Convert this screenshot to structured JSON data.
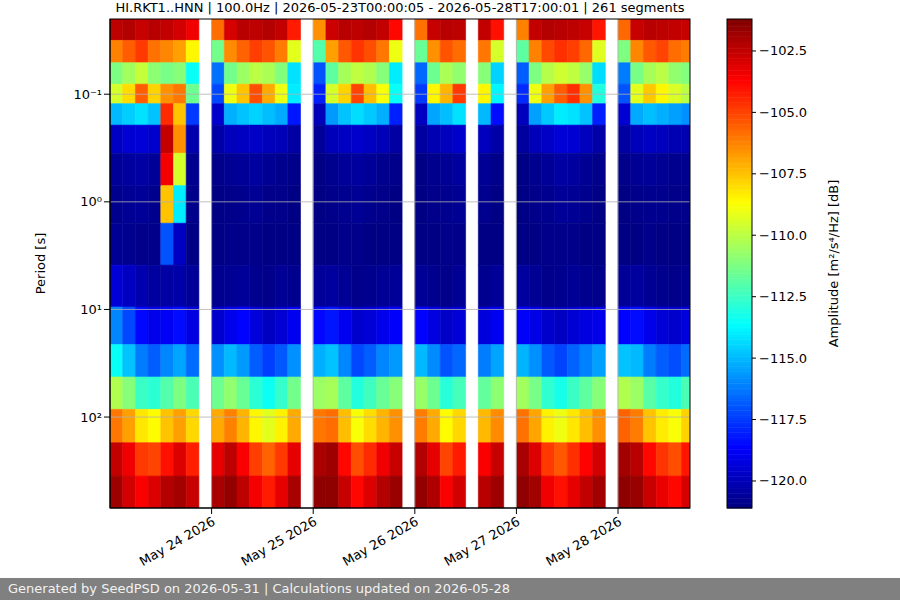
{
  "chart_data": {
    "type": "heatmap",
    "title": "HI.RKT1..HNN | 100.0Hz | 2026-05-23T00:00:05 - 2026-05-28T17:00:01 | 261 segments",
    "ylabel": "Period [s]",
    "footer": "Generated by SeedPSD on 2026-05-31 | Calculations updated on 2026-05-28",
    "log": "y",
    "grid": true,
    "color": "jet",
    "xlim": [
      "2026-05-23T00:00:05",
      "2026-05-28T17:00:01"
    ],
    "xticks": [
      {
        "value": "2026-05-24",
        "label": "May 24 2026"
      },
      {
        "value": "2026-05-25",
        "label": "May 25 2026"
      },
      {
        "value": "2026-05-26",
        "label": "May 26 2026"
      },
      {
        "value": "2026-05-27",
        "label": "May 27 2026"
      },
      {
        "value": "2026-05-28",
        "label": "May 28 2026"
      }
    ],
    "ylim": [
      0.02,
      700
    ],
    "yticks": [
      {
        "value": 0.1,
        "label": "10⁻¹"
      },
      {
        "value": 1,
        "label": "10⁰"
      },
      {
        "value": 10,
        "label": "10¹"
      },
      {
        "value": 100,
        "label": "10²"
      }
    ],
    "x": [
      "2026-05-23T01:30",
      "2026-05-23T04:30",
      "2026-05-23T07:30",
      "2026-05-23T10:30",
      "2026-05-23T13:30",
      "2026-05-23T16:30",
      "2026-05-23T19:30",
      "2026-05-23T22:30",
      "2026-05-24T01:30",
      "2026-05-24T04:30",
      "2026-05-24T07:30",
      "2026-05-24T10:30",
      "2026-05-24T13:30",
      "2026-05-24T16:30",
      "2026-05-24T19:30",
      "2026-05-24T22:30",
      "2026-05-25T01:30",
      "2026-05-25T04:30",
      "2026-05-25T07:30",
      "2026-05-25T10:30",
      "2026-05-25T13:30",
      "2026-05-25T16:30",
      "2026-05-25T19:30",
      "2026-05-25T22:30",
      "2026-05-26T01:30",
      "2026-05-26T04:30",
      "2026-05-26T07:30",
      "2026-05-26T10:30",
      "2026-05-26T13:30",
      "2026-05-26T16:30",
      "2026-05-26T19:30",
      "2026-05-26T22:30",
      "2026-05-27T01:30",
      "2026-05-27T04:30",
      "2026-05-27T07:30",
      "2026-05-27T10:30",
      "2026-05-27T13:30",
      "2026-05-27T16:30",
      "2026-05-27T19:30",
      "2026-05-27T22:30",
      "2026-05-28T01:30",
      "2026-05-28T04:30",
      "2026-05-28T07:30",
      "2026-05-28T10:30",
      "2026-05-28T13:30",
      "2026-05-28T16:30"
    ],
    "y": [
      0.025,
      0.04,
      0.065,
      0.1,
      0.15,
      0.25,
      0.5,
      1,
      2.5,
      6,
      15,
      30,
      60,
      120,
      250,
      500
    ],
    "z": [
      [
        -102.4,
        -102.2,
        -102.6,
        -102.3,
        -102.5,
        -102.8,
        -103.4,
        null,
        -105.8,
        -102.9,
        -102.3,
        -102.4,
        -102.2,
        -102.5,
        -104.2,
        null,
        -106.5,
        -102.7,
        -102.3,
        -102.4,
        -102.2,
        -102.5,
        -103.8,
        null,
        -105.9,
        -102.6,
        -102.3,
        -102.4,
        null,
        -102.5,
        -104.0,
        null,
        -106.2,
        -102.5,
        -102.2,
        -102.3,
        -102.4,
        -102.6,
        -104.1,
        null,
        -105.7,
        -102.6,
        -102.3,
        -102.4,
        -102.5,
        -102.6
      ],
      [
        -106.2,
        -105.5,
        -104.8,
        -105.9,
        -106.3,
        -106.8,
        -108.5,
        null,
        -111.4,
        -106.4,
        -105.6,
        -104.9,
        -105.3,
        -106.1,
        -109.2,
        null,
        -112.0,
        -106.8,
        -105.4,
        -104.7,
        -105.2,
        -106.0,
        -109.0,
        null,
        -111.6,
        -106.5,
        -105.3,
        -105.8,
        null,
        -106.0,
        -109.5,
        null,
        -111.8,
        -106.2,
        -105.1,
        -104.6,
        -104.9,
        -105.7,
        -109.3,
        null,
        -111.2,
        -106.3,
        -105.4,
        -105.0,
        -105.8,
        -106.1
      ],
      [
        -111.2,
        -110.5,
        -109.8,
        -110.9,
        -111.3,
        -111.0,
        -113.5,
        null,
        -116.4,
        -111.4,
        -110.6,
        -110.0,
        -110.3,
        -111.1,
        -114.2,
        null,
        -117.0,
        -111.8,
        -110.4,
        -109.9,
        -110.2,
        -111.0,
        -114.0,
        null,
        -116.6,
        -111.5,
        -110.3,
        -110.8,
        null,
        -111.0,
        -114.5,
        null,
        -116.8,
        -111.2,
        -110.1,
        -109.6,
        -109.9,
        -110.7,
        -114.3,
        null,
        -116.2,
        -111.3,
        -110.4,
        -110.0,
        -110.8,
        -111.1
      ],
      [
        -109.5,
        -108.0,
        -105.5,
        -107.8,
        -106.5,
        -106.0,
        -111.5,
        null,
        -117.2,
        -109.0,
        -107.5,
        -105.2,
        -107.0,
        -109.0,
        -114.0,
        null,
        -118.0,
        -109.5,
        -107.8,
        -105.0,
        -107.4,
        -108.8,
        -113.5,
        null,
        -117.5,
        -108.5,
        -107.2,
        -104.8,
        null,
        -108.5,
        -113.8,
        null,
        -117.8,
        -109.0,
        -106.8,
        -105.5,
        -104.6,
        -106.5,
        -113.0,
        null,
        -117.0,
        -109.2,
        -107.6,
        -108.5,
        -109.4,
        -110.0
      ],
      [
        -115.0,
        -114.6,
        -114.2,
        -114.8,
        -104.5,
        -107.5,
        -117.5,
        null,
        -119.6,
        -115.2,
        -114.8,
        -114.5,
        -114.9,
        -115.3,
        -118.2,
        null,
        -120.0,
        -115.6,
        -114.8,
        -114.3,
        -114.7,
        -115.2,
        -118.0,
        null,
        -119.8,
        -115.4,
        -114.9,
        -114.2,
        null,
        -115.0,
        -118.4,
        null,
        -119.9,
        -115.5,
        -114.7,
        -114.0,
        -114.2,
        -114.8,
        -118.0,
        null,
        -119.5,
        -115.3,
        -114.9,
        -115.2,
        -115.5,
        -115.8
      ],
      [
        -119.8,
        -119.5,
        -119.4,
        -119.6,
        -102.5,
        -106.5,
        -120.2,
        null,
        -120.3,
        -119.9,
        -119.8,
        -119.7,
        -119.9,
        -120.0,
        -120.4,
        null,
        -120.6,
        -120.0,
        -119.8,
        -119.6,
        -119.8,
        -120.0,
        -120.4,
        null,
        -120.5,
        -120.1,
        -119.9,
        -119.6,
        null,
        -119.9,
        -120.3,
        null,
        -120.5,
        -120.0,
        -119.7,
        -119.4,
        -119.5,
        -119.9,
        -120.3,
        null,
        -120.4,
        -120.0,
        -119.8,
        -119.9,
        -120.1,
        -120.2
      ],
      [
        -120.6,
        -120.5,
        -120.4,
        -120.6,
        -103.5,
        -109.5,
        -120.8,
        null,
        -120.9,
        -120.7,
        -120.6,
        -120.5,
        -120.7,
        -120.8,
        -120.9,
        null,
        -121.0,
        -120.8,
        -120.6,
        -120.5,
        -120.6,
        -120.8,
        -120.9,
        null,
        -121.0,
        -120.8,
        -120.7,
        -120.5,
        null,
        -120.7,
        -120.9,
        null,
        -121.0,
        -120.8,
        -120.6,
        -120.4,
        -120.5,
        -120.7,
        -120.9,
        null,
        -120.9,
        -120.7,
        -120.6,
        -120.7,
        -120.8,
        -120.8
      ],
      [
        -120.8,
        -120.7,
        -120.6,
        -120.8,
        -107.5,
        -114.0,
        -120.9,
        null,
        -121.0,
        -120.9,
        -120.8,
        -120.7,
        -120.9,
        -120.9,
        -121.0,
        null,
        -121.0,
        -120.9,
        -120.8,
        -120.7,
        -120.8,
        -120.9,
        -121.0,
        null,
        -121.0,
        -120.9,
        -120.8,
        -120.7,
        null,
        -120.8,
        -121.0,
        null,
        -121.0,
        -120.9,
        -120.8,
        -120.6,
        -120.7,
        -120.8,
        -121.0,
        null,
        -121.0,
        -120.9,
        -120.8,
        -120.8,
        -120.9,
        -120.9
      ],
      [
        -120.7,
        -120.8,
        -120.9,
        -120.9,
        -117.0,
        -119.8,
        -121.0,
        null,
        -121.0,
        -120.9,
        -120.9,
        -120.9,
        -121.0,
        -121.0,
        -121.0,
        null,
        -121.0,
        -121.0,
        -120.9,
        -120.9,
        -121.0,
        -121.0,
        -121.0,
        null,
        -121.0,
        -121.0,
        -120.9,
        -120.9,
        null,
        -121.0,
        -121.0,
        null,
        -121.0,
        -121.0,
        -120.9,
        -120.9,
        -120.9,
        -121.0,
        -121.0,
        null,
        -121.0,
        -121.0,
        -120.9,
        -121.0,
        -121.0,
        -121.0
      ],
      [
        -119.4,
        -119.8,
        -120.2,
        -120.5,
        -120.4,
        -120.3,
        -120.6,
        null,
        -120.8,
        -120.7,
        -120.6,
        -120.8,
        -120.9,
        -120.7,
        -120.8,
        null,
        -120.6,
        -120.5,
        -120.7,
        -120.9,
        -120.8,
        -120.7,
        -120.6,
        null,
        -120.7,
        -120.8,
        -120.9,
        -120.7,
        null,
        -120.8,
        -120.6,
        null,
        -120.5,
        -120.7,
        -120.9,
        -120.8,
        -120.7,
        -120.8,
        -120.9,
        null,
        -120.6,
        -120.5,
        -120.7,
        -120.8,
        -120.9,
        -120.8
      ],
      [
        -116.0,
        -117.2,
        -118.5,
        -119.0,
        -118.8,
        -118.4,
        -119.2,
        null,
        -119.6,
        -119.0,
        -118.6,
        -119.3,
        -119.8,
        -119.5,
        -118.9,
        null,
        -118.5,
        -118.2,
        -118.9,
        -119.6,
        -119.4,
        -119.0,
        -118.7,
        null,
        -118.6,
        -119.2,
        -119.7,
        -119.4,
        null,
        -119.3,
        -118.9,
        null,
        -118.7,
        -119.1,
        -119.6,
        -119.8,
        -119.5,
        -119.2,
        -119.0,
        null,
        -118.6,
        -118.4,
        -119.0,
        -119.4,
        -119.6,
        -119.3
      ],
      [
        -113.5,
        -114.8,
        -116.2,
        -116.8,
        -116.0,
        -115.4,
        -116.5,
        null,
        -115.8,
        -115.0,
        -115.6,
        -116.8,
        -117.4,
        -116.9,
        -115.8,
        null,
        -115.2,
        -114.8,
        -116.0,
        -117.2,
        -116.8,
        -116.0,
        -115.6,
        null,
        -115.0,
        -115.9,
        -117.0,
        -116.6,
        null,
        -116.2,
        -115.4,
        null,
        -115.1,
        -115.8,
        -116.9,
        -117.3,
        -116.7,
        -116.1,
        -115.5,
        null,
        -114.8,
        -115.0,
        -116.2,
        -116.8,
        -117.1,
        -116.5
      ],
      [
        -110.2,
        -111.0,
        -112.5,
        -112.8,
        -112.0,
        -111.2,
        -112.2,
        null,
        -111.5,
        -110.8,
        -111.6,
        -112.8,
        -113.4,
        -112.6,
        -111.4,
        null,
        -110.6,
        -110.4,
        -111.8,
        -113.0,
        -112.4,
        -111.6,
        -111.0,
        null,
        -110.7,
        -111.5,
        -112.9,
        -112.3,
        null,
        -111.7,
        -110.9,
        null,
        -110.5,
        -111.3,
        -112.7,
        -113.2,
        -112.5,
        -111.8,
        -111.0,
        null,
        -110.2,
        -110.6,
        -111.9,
        -112.6,
        -113.0,
        -112.2
      ],
      [
        -106.0,
        -106.8,
        -108.2,
        -108.6,
        -107.5,
        -106.8,
        -107.9,
        null,
        -107.0,
        -106.2,
        -107.2,
        -108.5,
        -109.2,
        -108.4,
        -107.0,
        null,
        -106.0,
        -105.8,
        -107.4,
        -108.8,
        -108.0,
        -107.2,
        -106.5,
        null,
        -106.1,
        -107.0,
        -108.6,
        -107.9,
        null,
        -107.3,
        -106.4,
        null,
        -105.9,
        -106.9,
        -108.4,
        -109.0,
        -108.2,
        -107.4,
        -106.5,
        null,
        -105.6,
        -106.1,
        -107.5,
        -108.3,
        -108.8,
        -107.8
      ],
      [
        -102.5,
        -103.4,
        -104.8,
        -105.0,
        -104.0,
        -103.0,
        -104.3,
        null,
        -103.2,
        -102.4,
        -103.6,
        -104.9,
        -105.6,
        -104.8,
        -103.2,
        null,
        -102.0,
        -101.8,
        -103.8,
        -105.2,
        -104.5,
        -103.4,
        -102.6,
        null,
        -102.2,
        -103.2,
        -105.0,
        -104.2,
        null,
        -103.6,
        -102.6,
        null,
        -102.0,
        -103.0,
        -104.8,
        -105.4,
        -104.6,
        -103.7,
        -102.8,
        null,
        -101.9,
        -102.3,
        -103.8,
        -104.7,
        -105.2,
        -104.1
      ],
      [
        -101.8,
        -102.8,
        -103.6,
        -103.0,
        -102.2,
        -101.9,
        -102.6,
        null,
        -102.0,
        -101.6,
        -102.4,
        -103.5,
        -104.2,
        -103.2,
        -102.0,
        null,
        -101.5,
        -101.5,
        -102.6,
        -103.8,
        -103.0,
        -102.2,
        -101.7,
        null,
        -101.6,
        -102.1,
        -103.6,
        -102.8,
        null,
        -102.3,
        -101.8,
        null,
        -101.5,
        -101.9,
        -103.4,
        -104.0,
        -103.2,
        -102.5,
        -101.9,
        null,
        -101.5,
        -101.7,
        -102.6,
        -103.3,
        -103.8,
        -102.9
      ]
    ],
    "colorbar": {
      "label": "Amplitude [m²/s⁴/Hz] [dB]",
      "lim": [
        -121.1,
        -101.2
      ],
      "ticks": [
        {
          "value": -102.5,
          "label": "−102.5"
        },
        {
          "value": -105,
          "label": "−105.0"
        },
        {
          "value": -107.5,
          "label": "−107.5"
        },
        {
          "value": -110,
          "label": "−110.0"
        },
        {
          "value": -112.5,
          "label": "−112.5"
        },
        {
          "value": -115,
          "label": "−115.0"
        },
        {
          "value": -117.5,
          "label": "−117.5"
        },
        {
          "value": -120,
          "label": "−120.0"
        }
      ]
    }
  }
}
